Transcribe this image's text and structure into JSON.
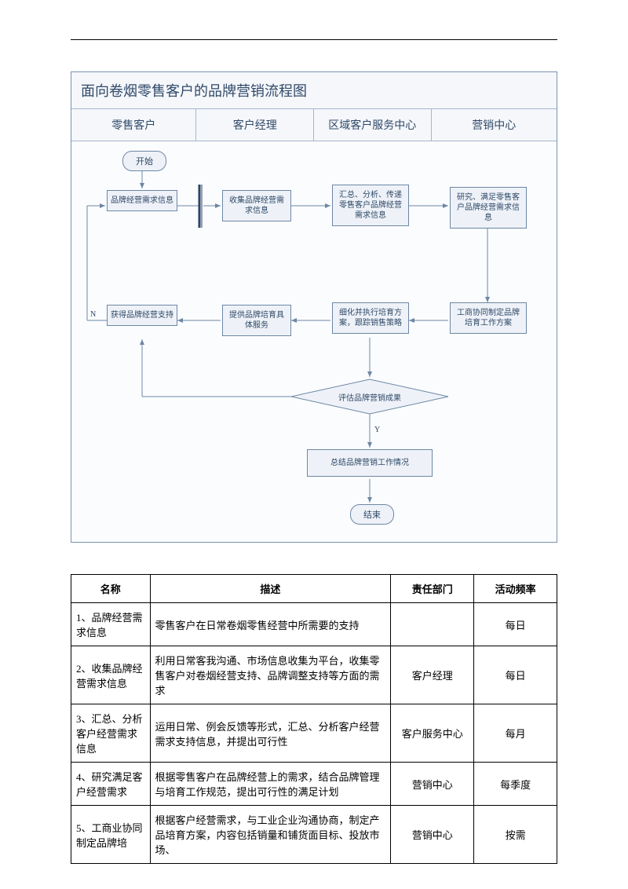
{
  "flowchart": {
    "title": "面向卷烟零售客户的品牌营销流程图",
    "swimlanes": [
      "零售客户",
      "客户经理",
      "区域客户服务中心",
      "营销中心"
    ],
    "nodes": {
      "start": "开始",
      "n1": "品牌经营需求信息",
      "n2": "收集品牌经营需求信息",
      "n3": "汇总、分析、传递零售客户品牌经营需求信息",
      "n4": "研究、满足零售客户品牌经营需求信息",
      "n5": "获得品牌经营支持",
      "n6": "提供品牌培育具体服务",
      "n7": "细化并执行培育方案，跟踪销售策略",
      "n8": "工商协同制定品牌培育工作方案",
      "decision": "评估品牌营销成果",
      "n9": "总结品牌营销工作情况",
      "end": "结束"
    },
    "edge_labels": {
      "no": "N",
      "yes": "Y"
    },
    "colors": {
      "box_fill": "#eef2f8",
      "box_border": "#6d87a5",
      "container_bg": "#f5f7fb",
      "line": "#6d87a5",
      "text": "#2f4867"
    }
  },
  "table": {
    "headers": [
      "名称",
      "描述",
      "责任部门",
      "活动频率"
    ],
    "rows": [
      {
        "name": "1、品牌经营需求信息",
        "desc": "零售客户在日常卷烟零售经营中所需要的支持",
        "dept": "",
        "freq": "每日"
      },
      {
        "name": "2、收集品牌经营需求信息",
        "desc": "利用日常客我沟通、市场信息收集为平台，收集零售客户对卷烟经营支持、品牌调整支持等方面的需求",
        "dept": "客户经理",
        "freq": "每日"
      },
      {
        "name": "3、汇总、分析客户经营需求信息",
        "desc": "运用日常、例会反馈等形式，汇总、分析客户经营需求支持信息，并提出可行性",
        "dept": "客户服务中心",
        "freq": "每月"
      },
      {
        "name": "4、研究满足客户经营需求",
        "desc": "根据零售客户在品牌经营上的需求，结合品牌管理与培育工作规范，提出可行性的满足计划",
        "dept": "营销中心",
        "freq": "每季度"
      },
      {
        "name": "5、工商业协同制定品牌培",
        "desc": "根据客户经营需求，与工业企业沟通协商，制定产品培育方案，内容包括销量和铺货面目标、投放市场、",
        "dept": "营销中心",
        "freq": "按需"
      }
    ]
  }
}
